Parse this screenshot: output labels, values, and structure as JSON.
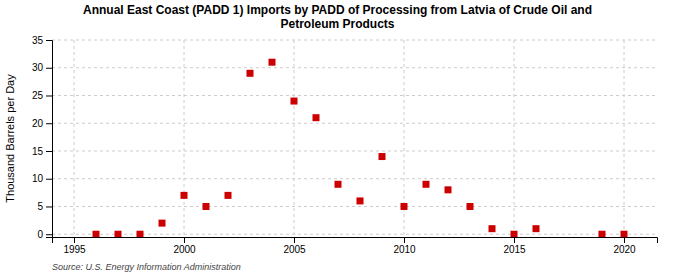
{
  "chart_data": {
    "type": "scatter",
    "title": "Annual East Coast (PADD 1) Imports by PADD of Processing from Latvia of Crude Oil and\nPetroleum Products",
    "ylabel": "Thousand Barrels per Day",
    "source": "Source: U.S. Energy Information Administration",
    "x": [
      1996,
      1997,
      1998,
      1999,
      2000,
      2001,
      2002,
      2003,
      2004,
      2005,
      2006,
      2007,
      2008,
      2009,
      2010,
      2011,
      2012,
      2013,
      2014,
      2015,
      2016,
      2019,
      2020
    ],
    "values": [
      0,
      0,
      0,
      2,
      7,
      5,
      7,
      29,
      31,
      24,
      21,
      9,
      6,
      14,
      5,
      9,
      8,
      5,
      1,
      0,
      1,
      0,
      0
    ],
    "color": "#cc0000",
    "marker": "square",
    "xlim": [
      1994.0,
      2021.5
    ],
    "ylim": [
      -0.5,
      35
    ],
    "xticks": [
      1995,
      2000,
      2005,
      2010,
      2015,
      2020
    ],
    "yticks": [
      0,
      5,
      10,
      15,
      20,
      25,
      30,
      35
    ],
    "grid": true
  }
}
